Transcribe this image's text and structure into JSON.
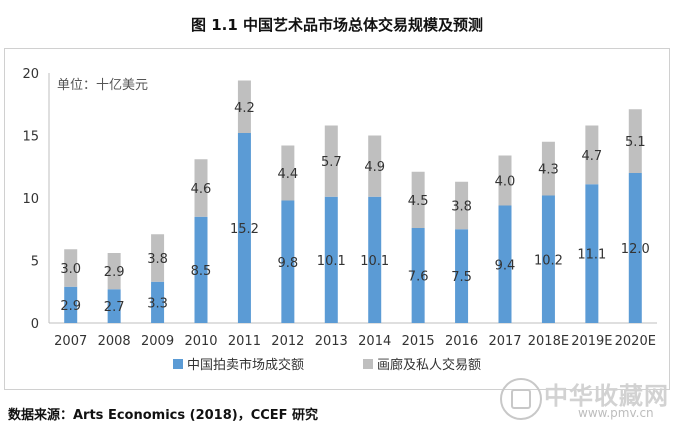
{
  "title": "图 1.1    中国艺术品市场总体交易规模及预测",
  "source": "数据来源：Arts Economics (2018)，CCEF 研究",
  "watermark": {
    "name": "中华收藏网",
    "url": "www.pmv.cn"
  },
  "colors": {
    "series_1": "#5B9BD5",
    "series_2": "#BFBFBF",
    "axis": "#bfbfbf",
    "text": "#222222"
  },
  "chart_data": {
    "type": "bar",
    "stacked": true,
    "unit_label": "单位：十亿美元",
    "categories": [
      "2007",
      "2008",
      "2009",
      "2010",
      "2011",
      "2012",
      "2013",
      "2014",
      "2015",
      "2016",
      "2017",
      "2018E",
      "2019E",
      "2020E"
    ],
    "series": [
      {
        "name": "中国拍卖市场成交额",
        "values": [
          2.9,
          2.7,
          3.3,
          8.5,
          15.2,
          9.8,
          10.1,
          10.1,
          7.6,
          7.5,
          9.4,
          10.2,
          11.1,
          12.0
        ],
        "labels": [
          "2.9",
          "2.7",
          "3.3",
          "8.5",
          "15.2",
          "9.8",
          "10.1",
          "10.1",
          "7.6",
          "7.5",
          "9.4",
          "10.2",
          "11.1",
          "12.0"
        ]
      },
      {
        "name": "画廊及私人交易额",
        "values": [
          3.0,
          2.9,
          3.8,
          4.6,
          4.2,
          4.4,
          5.7,
          4.9,
          4.5,
          3.8,
          4.0,
          4.3,
          4.7,
          5.1
        ],
        "labels": [
          "3.0",
          "2.9",
          "3.8",
          "4.6",
          "4.2",
          "4.4",
          "5.7",
          "4.9",
          "4.5",
          "3.8",
          "4.0",
          "4.3",
          "4.7",
          "5.1"
        ]
      }
    ],
    "ylim": [
      0,
      20
    ],
    "yticks": [
      "0",
      "5",
      "10",
      "15",
      "20"
    ],
    "ytick_values": [
      0,
      5,
      10,
      15,
      20
    ],
    "grid": false,
    "legend_position": "bottom"
  }
}
